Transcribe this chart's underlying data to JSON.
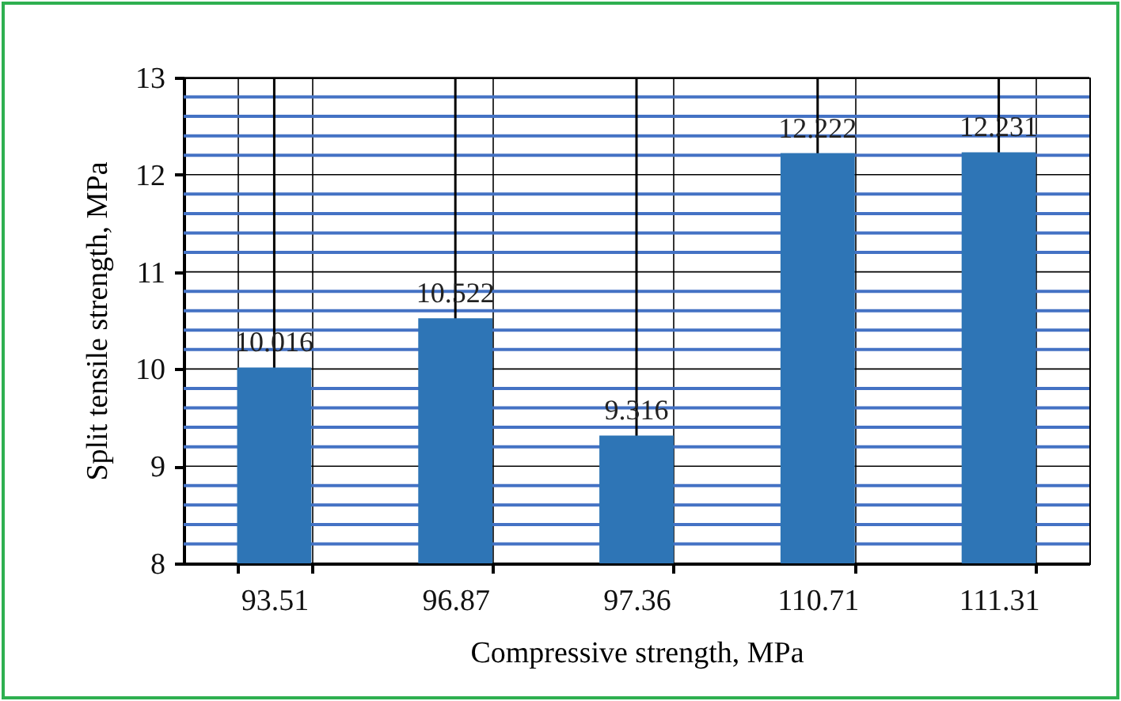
{
  "chart_data": {
    "type": "bar",
    "xlabel": "Compressive strength, MPa",
    "ylabel": "Split tensile strength, MPa",
    "categories": [
      "93.51",
      "96.87",
      "97.36",
      "110.71",
      "111.31"
    ],
    "values": [
      10.016,
      10.522,
      9.316,
      12.222,
      12.231
    ],
    "color": "#2e75b6",
    "data_labels": true,
    "grid": true,
    "ylim": [
      8,
      13
    ],
    "yticks": [
      8,
      {
        "value": 8.2,
        "label": null
      },
      {
        "value": 8.4,
        "label": null
      },
      {
        "value": 8.6,
        "label": null
      },
      {
        "value": 8.8,
        "label": null
      },
      9,
      {
        "value": 9.2,
        "label": null
      },
      {
        "value": 9.4,
        "label": null
      },
      {
        "value": 9.6,
        "label": null
      },
      {
        "value": 9.8,
        "label": null
      },
      10,
      {
        "value": 10.2,
        "label": null
      },
      {
        "value": 10.4,
        "label": null
      },
      {
        "value": 10.6,
        "label": null
      },
      {
        "value": 10.8,
        "label": null
      },
      11,
      {
        "value": 11.2,
        "label": null
      },
      {
        "value": 11.4,
        "label": null
      },
      {
        "value": 11.6,
        "label": null
      },
      {
        "value": 11.8,
        "label": null
      },
      12,
      {
        "value": 12.2,
        "label": null
      },
      {
        "value": 12.4,
        "label": null
      },
      {
        "value": 12.6,
        "label": null
      },
      {
        "value": 12.8,
        "label": null
      },
      13
    ]
  }
}
